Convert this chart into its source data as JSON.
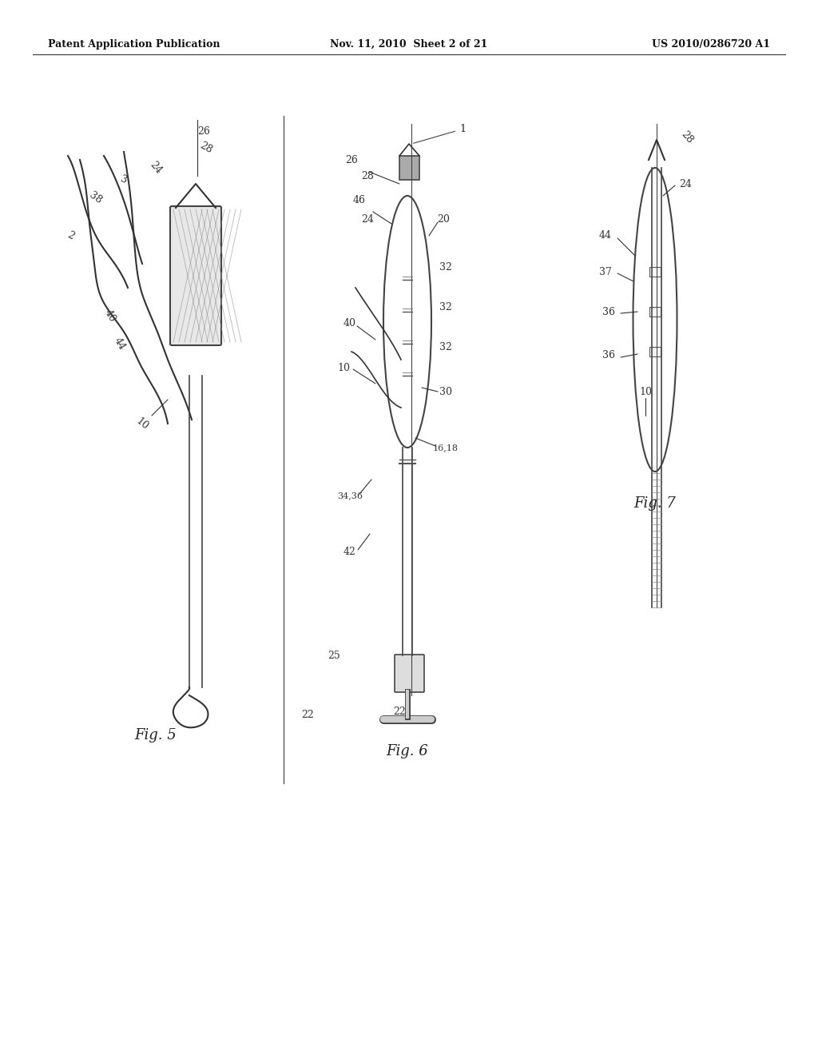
{
  "bg_color": "#ffffff",
  "header_left": "Patent Application Publication",
  "header_mid": "Nov. 11, 2010  Sheet 2 of 21",
  "header_right": "US 2010/0286720 A1",
  "fig5_label": "Fig. 5",
  "fig6_label": "Fig. 6",
  "fig7_label": "Fig. 7"
}
